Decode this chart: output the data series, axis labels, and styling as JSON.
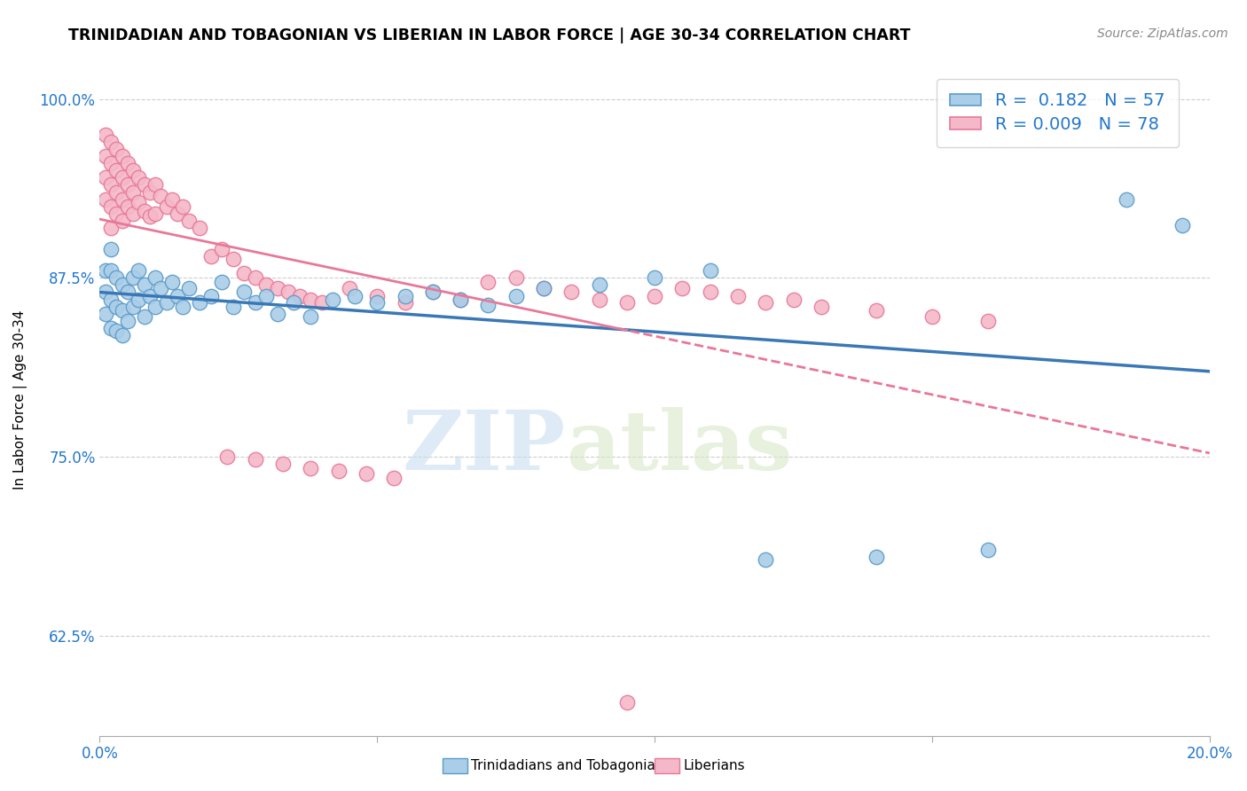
{
  "title": "TRINIDADIAN AND TOBAGONIAN VS LIBERIAN IN LABOR FORCE | AGE 30-34 CORRELATION CHART",
  "source": "Source: ZipAtlas.com",
  "ylabel": "In Labor Force | Age 30-34",
  "xmin": 0.0,
  "xmax": 0.2,
  "ymin": 0.555,
  "ymax": 1.025,
  "yticks": [
    0.625,
    0.75,
    0.875,
    1.0
  ],
  "ytick_labels": [
    "62.5%",
    "75.0%",
    "87.5%",
    "100.0%"
  ],
  "xticks": [
    0.0,
    0.05,
    0.1,
    0.15,
    0.2
  ],
  "xtick_labels": [
    "0.0%",
    "",
    "",
    "",
    "20.0%"
  ],
  "blue_R": 0.182,
  "blue_N": 57,
  "pink_R": 0.009,
  "pink_N": 78,
  "blue_color": "#aacde8",
  "pink_color": "#f4b8c8",
  "blue_edge_color": "#5b9bc8",
  "pink_edge_color": "#e87898",
  "blue_line_color": "#3a78b5",
  "pink_line_color": "#e87898",
  "legend_label_blue": "Trinidadians and Tobagonians",
  "legend_label_pink": "Liberians",
  "watermark_zip": "ZIP",
  "watermark_atlas": "atlas",
  "blue_scatter_x": [
    0.001,
    0.001,
    0.001,
    0.002,
    0.002,
    0.002,
    0.002,
    0.003,
    0.003,
    0.003,
    0.004,
    0.004,
    0.004,
    0.005,
    0.005,
    0.006,
    0.006,
    0.007,
    0.007,
    0.008,
    0.008,
    0.009,
    0.01,
    0.01,
    0.011,
    0.012,
    0.013,
    0.014,
    0.015,
    0.016,
    0.018,
    0.02,
    0.022,
    0.024,
    0.026,
    0.028,
    0.03,
    0.032,
    0.035,
    0.038,
    0.042,
    0.046,
    0.05,
    0.055,
    0.06,
    0.065,
    0.07,
    0.075,
    0.08,
    0.09,
    0.1,
    0.11,
    0.12,
    0.14,
    0.16,
    0.185,
    0.195
  ],
  "blue_scatter_y": [
    0.88,
    0.865,
    0.85,
    0.895,
    0.88,
    0.86,
    0.84,
    0.875,
    0.855,
    0.838,
    0.87,
    0.852,
    0.835,
    0.865,
    0.845,
    0.875,
    0.855,
    0.88,
    0.86,
    0.87,
    0.848,
    0.862,
    0.875,
    0.855,
    0.868,
    0.858,
    0.872,
    0.862,
    0.855,
    0.868,
    0.858,
    0.862,
    0.872,
    0.855,
    0.865,
    0.858,
    0.862,
    0.85,
    0.858,
    0.848,
    0.86,
    0.862,
    0.858,
    0.862,
    0.865,
    0.86,
    0.856,
    0.862,
    0.868,
    0.87,
    0.875,
    0.88,
    0.678,
    0.68,
    0.685,
    0.93,
    0.912
  ],
  "pink_scatter_x": [
    0.001,
    0.001,
    0.001,
    0.001,
    0.002,
    0.002,
    0.002,
    0.002,
    0.002,
    0.003,
    0.003,
    0.003,
    0.003,
    0.004,
    0.004,
    0.004,
    0.004,
    0.005,
    0.005,
    0.005,
    0.006,
    0.006,
    0.006,
    0.007,
    0.007,
    0.008,
    0.008,
    0.009,
    0.009,
    0.01,
    0.01,
    0.011,
    0.012,
    0.013,
    0.014,
    0.015,
    0.016,
    0.018,
    0.02,
    0.022,
    0.024,
    0.026,
    0.028,
    0.03,
    0.032,
    0.034,
    0.036,
    0.038,
    0.04,
    0.045,
    0.05,
    0.055,
    0.06,
    0.065,
    0.07,
    0.075,
    0.08,
    0.085,
    0.09,
    0.095,
    0.1,
    0.105,
    0.11,
    0.115,
    0.12,
    0.125,
    0.13,
    0.14,
    0.15,
    0.16,
    0.023,
    0.028,
    0.033,
    0.038,
    0.043,
    0.048,
    0.053,
    0.095
  ],
  "pink_scatter_y": [
    0.975,
    0.96,
    0.945,
    0.93,
    0.97,
    0.955,
    0.94,
    0.925,
    0.91,
    0.965,
    0.95,
    0.935,
    0.92,
    0.96,
    0.945,
    0.93,
    0.915,
    0.955,
    0.94,
    0.925,
    0.95,
    0.935,
    0.92,
    0.945,
    0.928,
    0.94,
    0.922,
    0.935,
    0.918,
    0.94,
    0.92,
    0.932,
    0.925,
    0.93,
    0.92,
    0.925,
    0.915,
    0.91,
    0.89,
    0.895,
    0.888,
    0.878,
    0.875,
    0.87,
    0.868,
    0.865,
    0.862,
    0.86,
    0.858,
    0.868,
    0.862,
    0.858,
    0.865,
    0.86,
    0.872,
    0.875,
    0.868,
    0.865,
    0.86,
    0.858,
    0.862,
    0.868,
    0.865,
    0.862,
    0.858,
    0.86,
    0.855,
    0.852,
    0.848,
    0.845,
    0.75,
    0.748,
    0.745,
    0.742,
    0.74,
    0.738,
    0.735,
    0.578
  ]
}
